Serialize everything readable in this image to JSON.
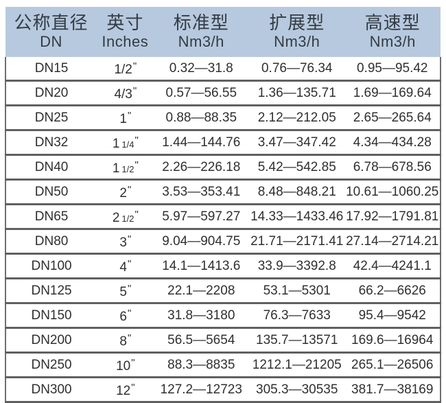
{
  "table": {
    "columns": [
      {
        "line1": "公称直径",
        "line2": "DN"
      },
      {
        "line1": "英寸",
        "line2": "Inches"
      },
      {
        "line1": "标准型",
        "line2": "Nm3/h"
      },
      {
        "line1": "扩展型",
        "line2": "Nm3/h"
      },
      {
        "line1": "高速型",
        "line2": "Nm3/h"
      }
    ],
    "rows": [
      {
        "dn": "DN15",
        "in_main": "1/2",
        "in_frac": "",
        "in_mark": "\"",
        "standard": "0.32—31.8",
        "extended": "0.76—76.34",
        "high_speed": "0.95—95.42"
      },
      {
        "dn": "DN20",
        "in_main": "4/3",
        "in_frac": "",
        "in_mark": "\"",
        "standard": "0.57—56.55",
        "extended": "1.36—135.71",
        "high_speed": "1.69—169.64"
      },
      {
        "dn": "DN25",
        "in_main": "1",
        "in_frac": "",
        "in_mark": "\"",
        "standard": "0.88—88.35",
        "extended": "2.12—212.05",
        "high_speed": "2.65—265.64"
      },
      {
        "dn": "DN32",
        "in_main": "1",
        "in_frac": "1/4",
        "in_mark": "\"",
        "standard": "1.44—144.76",
        "extended": "3.47—347.42",
        "high_speed": "4.34—434.28"
      },
      {
        "dn": "DN40",
        "in_main": "1",
        "in_frac": "1/2",
        "in_mark": "\"",
        "standard": "2.26—226.18",
        "extended": "5.42—542.85",
        "high_speed": "6.78—678.56"
      },
      {
        "dn": "DN50",
        "in_main": "2",
        "in_frac": "",
        "in_mark": "\"",
        "standard": "3.53—353.41",
        "extended": "8.48—848.21",
        "high_speed": "10.61—1060.25"
      },
      {
        "dn": "DN65",
        "in_main": "2",
        "in_frac": "1/2",
        "in_mark": "\"",
        "standard": "5.97—597.27",
        "extended": "14.33—1433.46",
        "high_speed": "17.92—1791.81"
      },
      {
        "dn": "DN80",
        "in_main": "3",
        "in_frac": "",
        "in_mark": "\"",
        "standard": "9.04—904.75",
        "extended": "21.71—2171.41",
        "high_speed": "27.14—2714.21"
      },
      {
        "dn": "DN100",
        "in_main": "4",
        "in_frac": "",
        "in_mark": "\"",
        "standard": "14.1—1413.6",
        "extended": "33.9—3392.8",
        "high_speed": "42.4—4241.1"
      },
      {
        "dn": "DN125",
        "in_main": "5",
        "in_frac": "",
        "in_mark": "\"",
        "standard": "22.1—2208",
        "extended": "53.1—5301",
        "high_speed": "66.2—6626"
      },
      {
        "dn": "DN150",
        "in_main": "6",
        "in_frac": "",
        "in_mark": "\"",
        "standard": "31.8—3180",
        "extended": "76.3—7633",
        "high_speed": "95.4—9542"
      },
      {
        "dn": "DN200",
        "in_main": "8",
        "in_frac": "",
        "in_mark": "\"",
        "standard": "56.5—5654",
        "extended": "135.7—13571",
        "high_speed": "169.6—16964"
      },
      {
        "dn": "DN250",
        "in_main": "10",
        "in_frac": "",
        "in_mark": "\"",
        "standard": "88.3—8835",
        "extended": "1212.1—21205",
        "high_speed": "265.1—26506"
      },
      {
        "dn": "DN300",
        "in_main": "12",
        "in_frac": "",
        "in_mark": "\"",
        "standard": "127.2—12723",
        "extended": "305.3—30535",
        "high_speed": "381.7—38169"
      }
    ],
    "colors": {
      "header_bg": "#b7c9de",
      "row_line": "#606060",
      "text": "#2f2f2f"
    }
  }
}
